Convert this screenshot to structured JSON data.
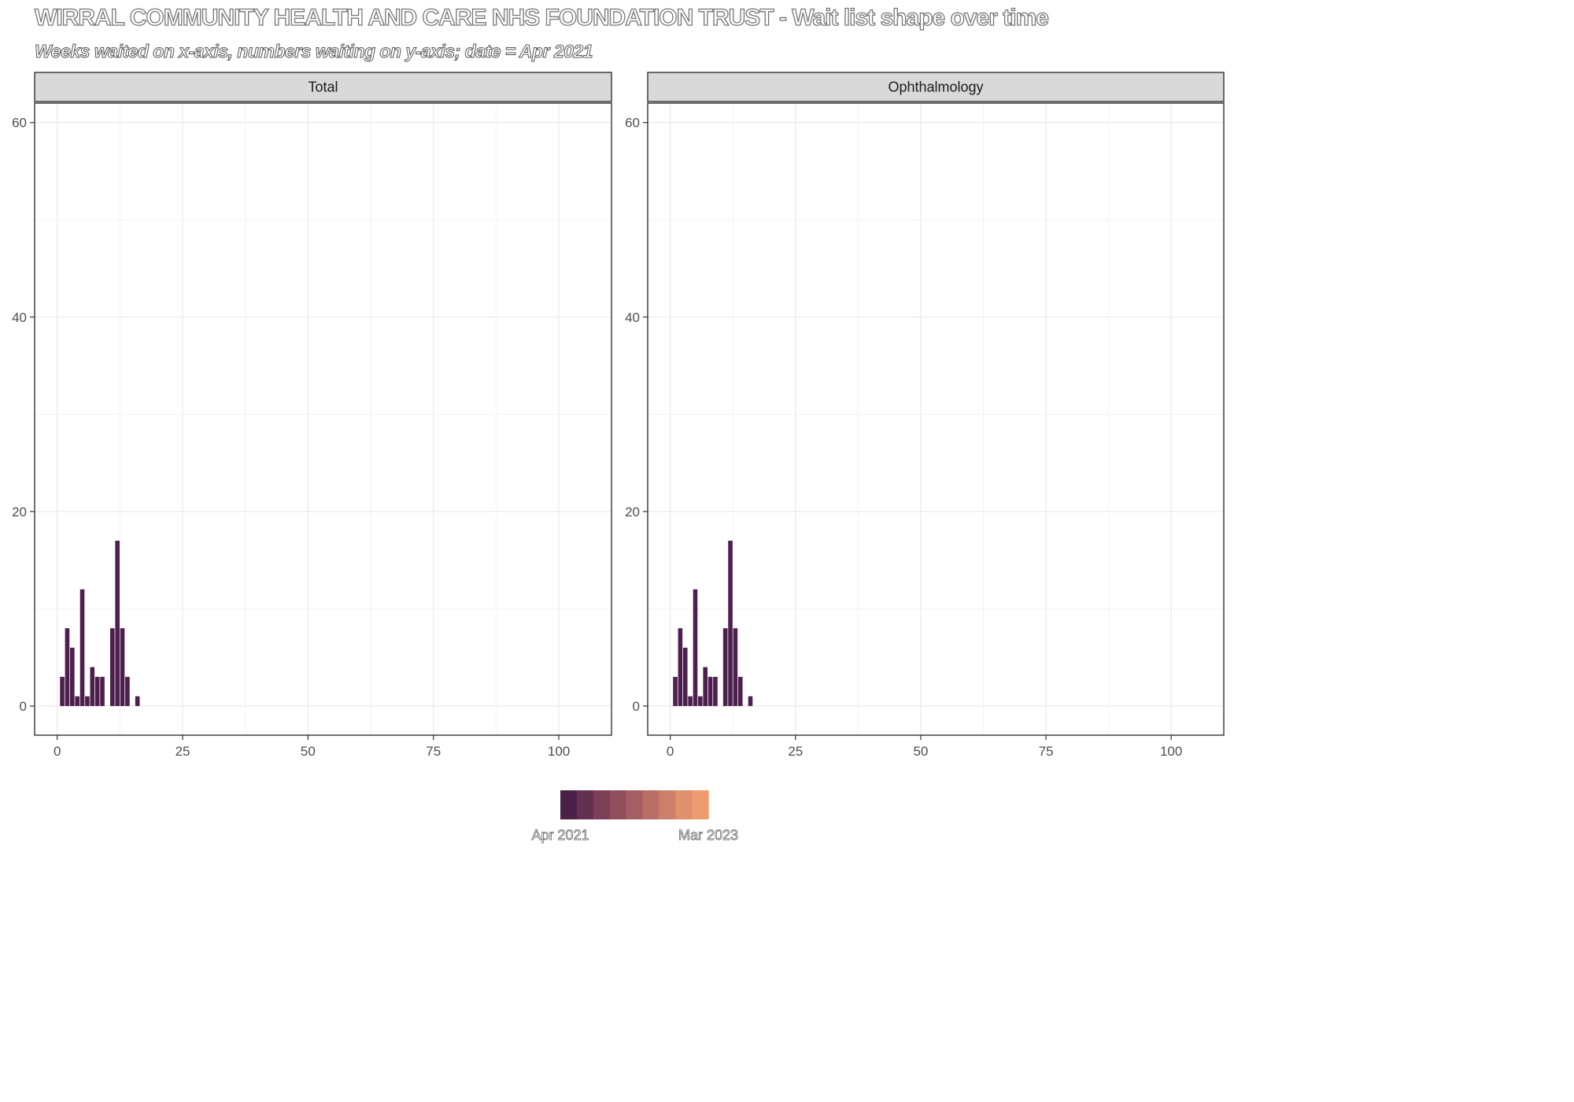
{
  "title": "WIRRAL COMMUNITY HEALTH AND CARE NHS FOUNDATION TRUST - Wait list shape over time",
  "subtitle": "Weeks waited on x-axis, numbers waiting on y-axis; date = Apr 2021",
  "chart_data": [
    {
      "type": "bar",
      "facet": "Total",
      "x": [
        1,
        2,
        3,
        4,
        5,
        6,
        7,
        8,
        9,
        10,
        11,
        12,
        13,
        14,
        15,
        16
      ],
      "values": [
        3,
        8,
        6,
        1,
        12,
        1,
        4,
        3,
        3,
        0,
        8,
        17,
        8,
        3,
        0,
        1
      ],
      "xlim": [
        -4.5,
        110.5
      ],
      "ylim": [
        -3,
        62
      ],
      "xticks": [
        0,
        25,
        50,
        75,
        100
      ],
      "yticks": [
        0,
        20,
        40,
        60
      ],
      "grid": true,
      "bar_color": "#4d1f4d"
    },
    {
      "type": "bar",
      "facet": "Ophthalmology",
      "x": [
        1,
        2,
        3,
        4,
        5,
        6,
        7,
        8,
        9,
        10,
        11,
        12,
        13,
        14,
        15,
        16
      ],
      "values": [
        3,
        8,
        6,
        1,
        12,
        1,
        4,
        3,
        3,
        0,
        8,
        17,
        8,
        3,
        0,
        1
      ],
      "xlim": [
        -4.5,
        110.5
      ],
      "ylim": [
        -3,
        62
      ],
      "xticks": [
        0,
        25,
        50,
        75,
        100
      ],
      "yticks": [
        0,
        20,
        40,
        60
      ],
      "grid": true,
      "bar_color": "#4d1f4d"
    }
  ],
  "legend": {
    "colors": [
      "#4c2147",
      "#63304f",
      "#7b3f57",
      "#914e5d",
      "#a55e62",
      "#b96e66",
      "#cc7f69",
      "#df906d",
      "#ef9b70"
    ],
    "start_label": "Apr 2021",
    "end_label": "Mar 2023"
  }
}
